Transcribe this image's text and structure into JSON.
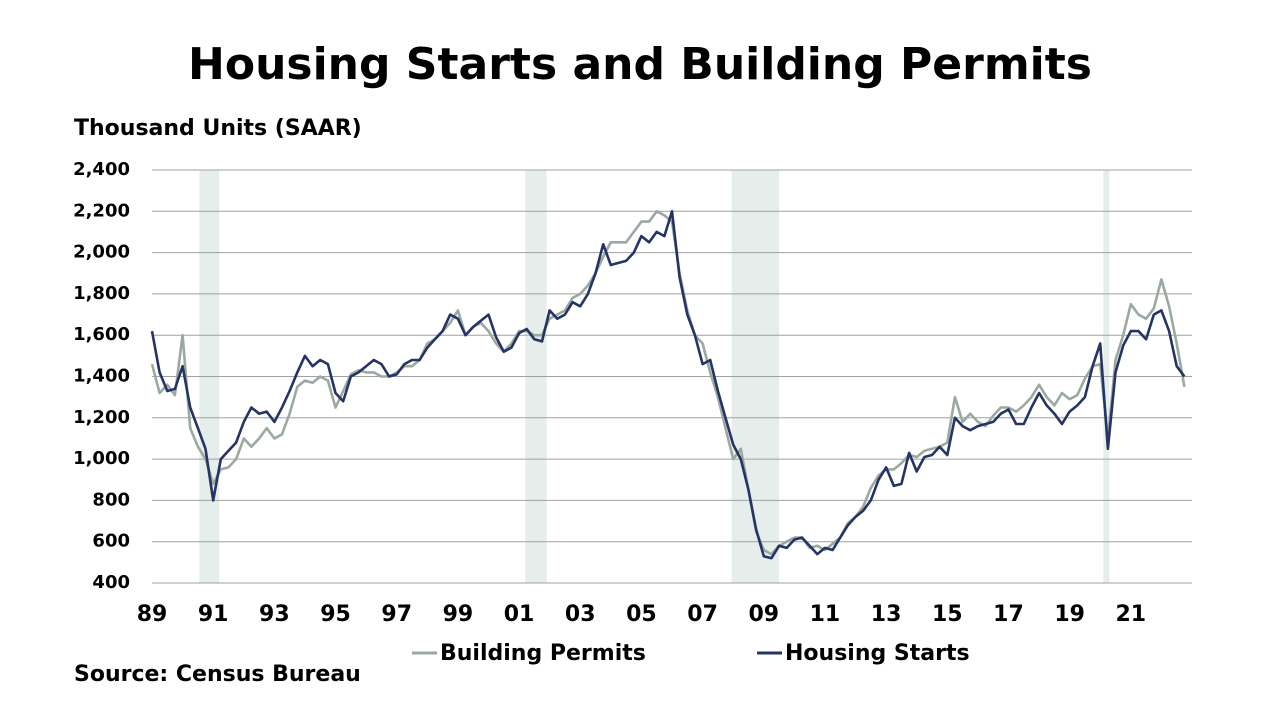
{
  "chart_data": {
    "type": "line",
    "title": "Housing Starts and Building Permits",
    "y_label": "Thousand Units (SAAR)",
    "source": "Source: Census Bureau",
    "xlim": [
      1989,
      2023
    ],
    "ylim": [
      400,
      2400
    ],
    "yticks": [
      {
        "value": 400,
        "label": "400"
      },
      {
        "value": 600,
        "label": "600"
      },
      {
        "value": 800,
        "label": "800"
      },
      {
        "value": 1000,
        "label": "1,000"
      },
      {
        "value": 1200,
        "label": "1,200"
      },
      {
        "value": 1400,
        "label": "1,400"
      },
      {
        "value": 1600,
        "label": "1,600"
      },
      {
        "value": 1800,
        "label": "1,800"
      },
      {
        "value": 2000,
        "label": "2,000"
      },
      {
        "value": 2200,
        "label": "2,200"
      },
      {
        "value": 2400,
        "label": "2,400"
      }
    ],
    "xticks": [
      {
        "value": 1989,
        "label": "89"
      },
      {
        "value": 1991,
        "label": "91"
      },
      {
        "value": 1993,
        "label": "93"
      },
      {
        "value": 1995,
        "label": "95"
      },
      {
        "value": 1997,
        "label": "97"
      },
      {
        "value": 1999,
        "label": "99"
      },
      {
        "value": 2001,
        "label": "01"
      },
      {
        "value": 2003,
        "label": "03"
      },
      {
        "value": 2005,
        "label": "05"
      },
      {
        "value": 2007,
        "label": "07"
      },
      {
        "value": 2009,
        "label": "09"
      },
      {
        "value": 2011,
        "label": "11"
      },
      {
        "value": 2013,
        "label": "13"
      },
      {
        "value": 2015,
        "label": "15"
      },
      {
        "value": 2017,
        "label": "17"
      },
      {
        "value": 2019,
        "label": "19"
      },
      {
        "value": 2021,
        "label": "21"
      }
    ],
    "grid": true,
    "recessions": [
      [
        1990.55,
        1991.2
      ],
      [
        2001.2,
        2001.9
      ],
      [
        2007.95,
        2009.5
      ],
      [
        2020.1,
        2020.3
      ]
    ],
    "recession_color": "#e6eeec",
    "x": [
      1989,
      1989.25,
      1989.5,
      1989.75,
      1990,
      1990.25,
      1990.5,
      1990.75,
      1991,
      1991.25,
      1991.5,
      1991.75,
      1992,
      1992.25,
      1992.5,
      1992.75,
      1993,
      1993.25,
      1993.5,
      1993.75,
      1994,
      1994.25,
      1994.5,
      1994.75,
      1995,
      1995.25,
      1995.5,
      1995.75,
      1996,
      1996.25,
      1996.5,
      1996.75,
      1997,
      1997.25,
      1997.5,
      1997.75,
      1998,
      1998.25,
      1998.5,
      1998.75,
      1999,
      1999.25,
      1999.5,
      1999.75,
      2000,
      2000.25,
      2000.5,
      2000.75,
      2001,
      2001.25,
      2001.5,
      2001.75,
      2002,
      2002.25,
      2002.5,
      2002.75,
      2003,
      2003.25,
      2003.5,
      2003.75,
      2004,
      2004.25,
      2004.5,
      2004.75,
      2005,
      2005.25,
      2005.5,
      2005.75,
      2006,
      2006.25,
      2006.5,
      2006.75,
      2007,
      2007.25,
      2007.5,
      2007.75,
      2008,
      2008.25,
      2008.5,
      2008.75,
      2009,
      2009.25,
      2009.5,
      2009.75,
      2010,
      2010.25,
      2010.5,
      2010.75,
      2011,
      2011.25,
      2011.5,
      2011.75,
      2012,
      2012.25,
      2012.5,
      2012.75,
      2013,
      2013.25,
      2013.5,
      2013.75,
      2014,
      2014.25,
      2014.5,
      2014.75,
      2015,
      2015.25,
      2015.5,
      2015.75,
      2016,
      2016.25,
      2016.5,
      2016.75,
      2017,
      2017.25,
      2017.5,
      2017.75,
      2018,
      2018.25,
      2018.5,
      2018.75,
      2019,
      2019.25,
      2019.5,
      2019.75,
      2020,
      2020.25,
      2020.5,
      2020.75,
      2021,
      2021.25,
      2021.5,
      2021.75,
      2022,
      2022.25,
      2022.5,
      2022.75
    ],
    "series": [
      {
        "name": "Building Permits",
        "color": "#9aaa9f",
        "values": [
          1460,
          1320,
          1360,
          1310,
          1600,
          1150,
          1060,
          1000,
          880,
          950,
          960,
          1000,
          1100,
          1060,
          1100,
          1150,
          1100,
          1120,
          1220,
          1350,
          1380,
          1370,
          1400,
          1380,
          1250,
          1330,
          1410,
          1430,
          1420,
          1420,
          1400,
          1400,
          1420,
          1450,
          1450,
          1480,
          1560,
          1580,
          1620,
          1660,
          1720,
          1600,
          1640,
          1660,
          1620,
          1560,
          1520,
          1560,
          1620,
          1620,
          1600,
          1600,
          1680,
          1700,
          1720,
          1780,
          1800,
          1840,
          1900,
          1980,
          2050,
          2050,
          2050,
          2100,
          2150,
          2150,
          2200,
          2180,
          2150,
          1900,
          1720,
          1600,
          1560,
          1420,
          1300,
          1150,
          1000,
          1050,
          850,
          650,
          560,
          540,
          580,
          600,
          620,
          620,
          570,
          580,
          560,
          590,
          620,
          690,
          720,
          770,
          860,
          920,
          950,
          950,
          980,
          1020,
          1010,
          1040,
          1050,
          1060,
          1080,
          1300,
          1180,
          1220,
          1180,
          1160,
          1210,
          1250,
          1250,
          1230,
          1260,
          1300,
          1360,
          1300,
          1260,
          1320,
          1290,
          1310,
          1390,
          1450,
          1460,
          1100,
          1480,
          1600,
          1750,
          1700,
          1680,
          1730,
          1870,
          1740,
          1560,
          1350
        ]
      },
      {
        "name": "Housing Starts",
        "color": "#253464",
        "values": [
          1620,
          1420,
          1330,
          1340,
          1450,
          1250,
          1150,
          1050,
          800,
          1000,
          1040,
          1080,
          1180,
          1250,
          1220,
          1230,
          1180,
          1250,
          1330,
          1420,
          1500,
          1450,
          1480,
          1460,
          1320,
          1280,
          1400,
          1420,
          1450,
          1480,
          1460,
          1400,
          1410,
          1460,
          1480,
          1480,
          1540,
          1580,
          1620,
          1700,
          1680,
          1600,
          1640,
          1670,
          1700,
          1590,
          1520,
          1540,
          1610,
          1630,
          1580,
          1570,
          1720,
          1680,
          1700,
          1760,
          1740,
          1800,
          1900,
          2040,
          1940,
          1950,
          1960,
          2000,
          2080,
          2050,
          2100,
          2080,
          2200,
          1880,
          1700,
          1600,
          1460,
          1480,
          1330,
          1200,
          1070,
          1000,
          850,
          660,
          530,
          520,
          580,
          570,
          610,
          620,
          580,
          540,
          570,
          560,
          620,
          680,
          720,
          750,
          800,
          900,
          960,
          870,
          880,
          1030,
          940,
          1010,
          1020,
          1060,
          1020,
          1200,
          1160,
          1140,
          1160,
          1170,
          1180,
          1220,
          1240,
          1170,
          1170,
          1250,
          1320,
          1260,
          1220,
          1170,
          1230,
          1260,
          1300,
          1450,
          1560,
          1050,
          1420,
          1550,
          1620,
          1620,
          1580,
          1700,
          1720,
          1620,
          1450,
          1400
        ]
      }
    ]
  }
}
